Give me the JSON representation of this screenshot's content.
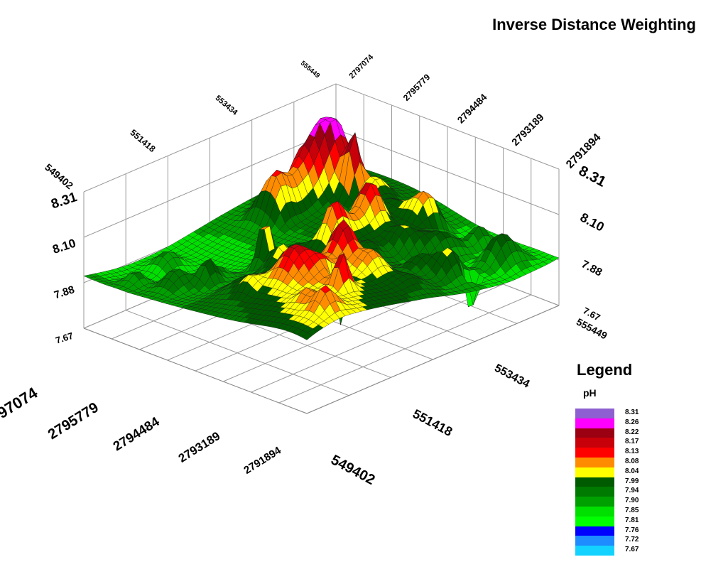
{
  "title": "Inverse Distance Weighting",
  "legend": {
    "title": "Legend",
    "variable": "pH",
    "items": [
      {
        "label": "8.31",
        "color": "#8e5fd0"
      },
      {
        "label": "8.26",
        "color": "#ff00ff"
      },
      {
        "label": "8.22",
        "color": "#9b0012"
      },
      {
        "label": "8.17",
        "color": "#c8000a"
      },
      {
        "label": "8.13",
        "color": "#ff0000"
      },
      {
        "label": "8.08",
        "color": "#ff8c00"
      },
      {
        "label": "8.04",
        "color": "#ffff00"
      },
      {
        "label": "7.99",
        "color": "#005a00"
      },
      {
        "label": "7.94",
        "color": "#007a00"
      },
      {
        "label": "7.90",
        "color": "#00a000"
      },
      {
        "label": "7.85",
        "color": "#00e000"
      },
      {
        "label": "7.81",
        "color": "#00ff00"
      },
      {
        "label": "7.76",
        "color": "#0000ff"
      },
      {
        "label": "7.72",
        "color": "#1e8cff"
      },
      {
        "label": "7.67",
        "color": "#14d2ff"
      }
    ]
  },
  "chart_data": {
    "type": "surface3d",
    "title": "Inverse Distance Weighting",
    "variable": "pH",
    "x_ticks": [
      "549402",
      "551418",
      "553434",
      "555449"
    ],
    "y_ticks": [
      "2797074",
      "2795779",
      "2794484",
      "2793189",
      "2791894"
    ],
    "z_ticks": [
      "7.67",
      "7.88",
      "8.10",
      "8.31"
    ],
    "z_range": [
      7.67,
      8.31
    ],
    "x_range": [
      549402,
      555449
    ],
    "y_range": [
      2791894,
      2797074
    ],
    "color_scale": [
      7.67,
      7.72,
      7.76,
      7.81,
      7.85,
      7.9,
      7.94,
      7.99,
      8.04,
      8.08,
      8.13,
      8.17,
      8.22,
      8.26,
      8.31
    ],
    "notes_visible": "interpolated surface with many sharp peaks up to 8.31 and a few pits down to 7.67"
  }
}
